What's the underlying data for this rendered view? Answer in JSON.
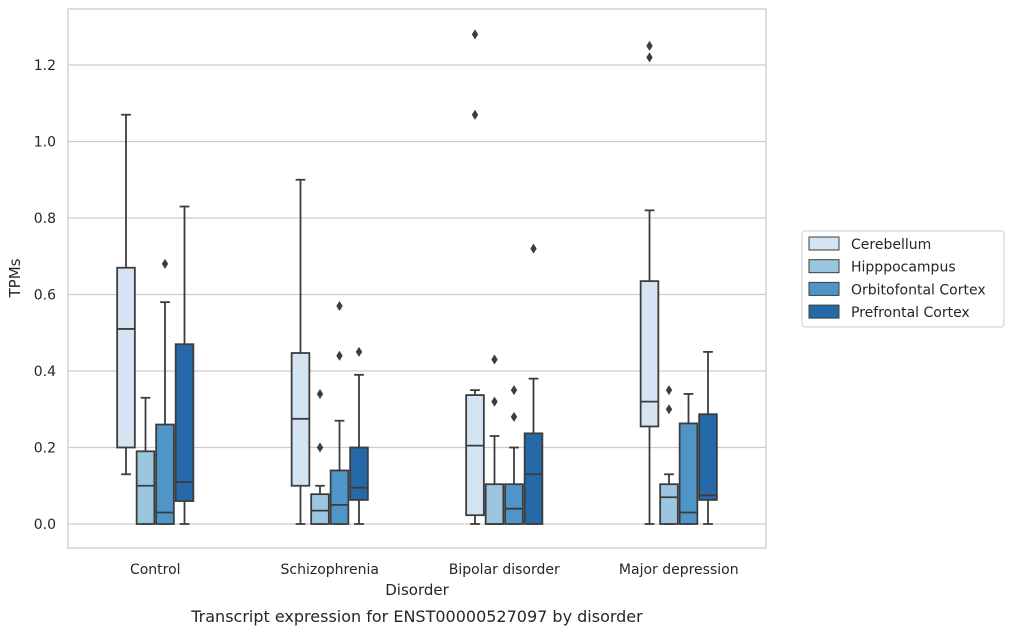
{
  "chart_data": {
    "type": "boxplot",
    "caption": "Transcript expression for ENST00000527097 by disorder",
    "xlabel": "Disorder",
    "ylabel": "TPMs",
    "ylim": [
      -0.06,
      1.35
    ],
    "yticks": [
      0.0,
      0.2,
      0.4,
      0.6,
      0.8,
      1.0,
      1.2
    ],
    "ytick_labels": [
      "0.0",
      "0.2",
      "0.4",
      "0.6",
      "0.8",
      "1.0",
      "1.2"
    ],
    "grid": "horizontal",
    "legend_position": "right",
    "categories": [
      "Control",
      "Schizophrenia",
      "Bipolar disorder",
      "Major depression"
    ],
    "series": [
      {
        "name": "Cerebellum",
        "color": "#d4e4f3",
        "boxes": [
          {
            "whislo": 0.13,
            "q1": 0.2,
            "med": 0.51,
            "q3": 0.67,
            "whishi": 1.07,
            "fliers": []
          },
          {
            "whislo": 0.0,
            "q1": 0.1,
            "med": 0.275,
            "q3": 0.447,
            "whishi": 0.9,
            "fliers": []
          },
          {
            "whislo": 0.0,
            "q1": 0.023,
            "med": 0.205,
            "q3": 0.337,
            "whishi": 0.35,
            "fliers": [
              1.07,
              1.28
            ]
          },
          {
            "whislo": 0.0,
            "q1": 0.255,
            "med": 0.32,
            "q3": 0.635,
            "whishi": 0.82,
            "fliers": [
              1.22,
              1.25
            ]
          }
        ]
      },
      {
        "name": "Hipppocampus",
        "color": "#9cc6e0",
        "boxes": [
          {
            "whislo": 0.0,
            "q1": 0.0,
            "med": 0.1,
            "q3": 0.19,
            "whishi": 0.33,
            "fliers": []
          },
          {
            "whislo": 0.0,
            "q1": 0.0,
            "med": 0.035,
            "q3": 0.078,
            "whishi": 0.1,
            "fliers": [
              0.2,
              0.34
            ]
          },
          {
            "whislo": 0.0,
            "q1": 0.0,
            "med": 0.0,
            "q3": 0.104,
            "whishi": 0.23,
            "fliers": [
              0.32,
              0.43
            ]
          },
          {
            "whislo": 0.0,
            "q1": 0.0,
            "med": 0.07,
            "q3": 0.104,
            "whishi": 0.13,
            "fliers": [
              0.3,
              0.35
            ]
          }
        ]
      },
      {
        "name": "Orbitofontal Cortex",
        "color": "#5095c8",
        "boxes": [
          {
            "whislo": 0.0,
            "q1": 0.0,
            "med": 0.03,
            "q3": 0.26,
            "whishi": 0.58,
            "fliers": [
              0.68
            ]
          },
          {
            "whislo": 0.0,
            "q1": 0.0,
            "med": 0.05,
            "q3": 0.14,
            "whishi": 0.27,
            "fliers": [
              0.44,
              0.57
            ]
          },
          {
            "whislo": 0.0,
            "q1": 0.0,
            "med": 0.04,
            "q3": 0.104,
            "whishi": 0.2,
            "fliers": [
              0.28,
              0.35
            ]
          },
          {
            "whislo": 0.0,
            "q1": 0.0,
            "med": 0.03,
            "q3": 0.263,
            "whishi": 0.34,
            "fliers": []
          }
        ]
      },
      {
        "name": "Prefrontal Cortex",
        "color": "#2669a9",
        "boxes": [
          {
            "whislo": 0.0,
            "q1": 0.06,
            "med": 0.11,
            "q3": 0.47,
            "whishi": 0.83,
            "fliers": []
          },
          {
            "whislo": 0.0,
            "q1": 0.063,
            "med": 0.095,
            "q3": 0.2,
            "whishi": 0.39,
            "fliers": [
              0.45
            ]
          },
          {
            "whislo": 0.0,
            "q1": 0.0,
            "med": 0.13,
            "q3": 0.237,
            "whishi": 0.38,
            "fliers": [
              0.72
            ]
          },
          {
            "whislo": 0.0,
            "q1": 0.063,
            "med": 0.075,
            "q3": 0.287,
            "whishi": 0.45,
            "fliers": []
          }
        ]
      }
    ]
  }
}
